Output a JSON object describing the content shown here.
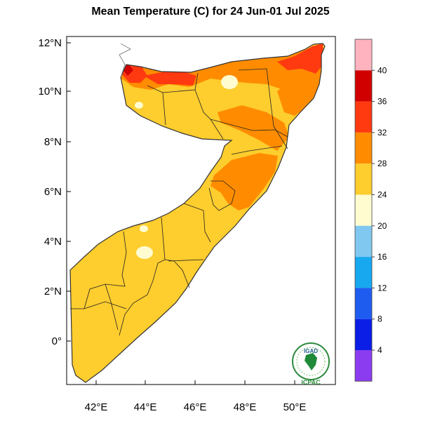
{
  "title": "Mean Temperature (C) for 24 Jun-01 Jul 2025",
  "axes": {
    "lat_labels": [
      "12°N",
      "10°N",
      "8°N",
      "6°N",
      "4°N",
      "2°N",
      "0°"
    ],
    "lon_labels": [
      "42°E",
      "44°E",
      "46°E",
      "48°E",
      "50°E"
    ]
  },
  "colorbar": {
    "labels": [
      "40",
      "36",
      "32",
      "28",
      "24",
      "20",
      "16",
      "12",
      "8",
      "4"
    ],
    "colors": [
      "#ffb3bf",
      "#d10000",
      "#ff3a10",
      "#ff8c00",
      "#fecd2e",
      "#fffcd0",
      "#80c8f0",
      "#18a8f0",
      "#1e5cf0",
      "#0a1ee6",
      "#8b3cf0"
    ]
  },
  "logo": {
    "top_text": "IGAD",
    "bottom_text": "ICPAC"
  },
  "colors": {
    "base": "#fecd2e",
    "hot": "#ff8c00",
    "very_hot": "#ff3a10",
    "extreme": "#d10000",
    "mild": "#fffcd0"
  }
}
